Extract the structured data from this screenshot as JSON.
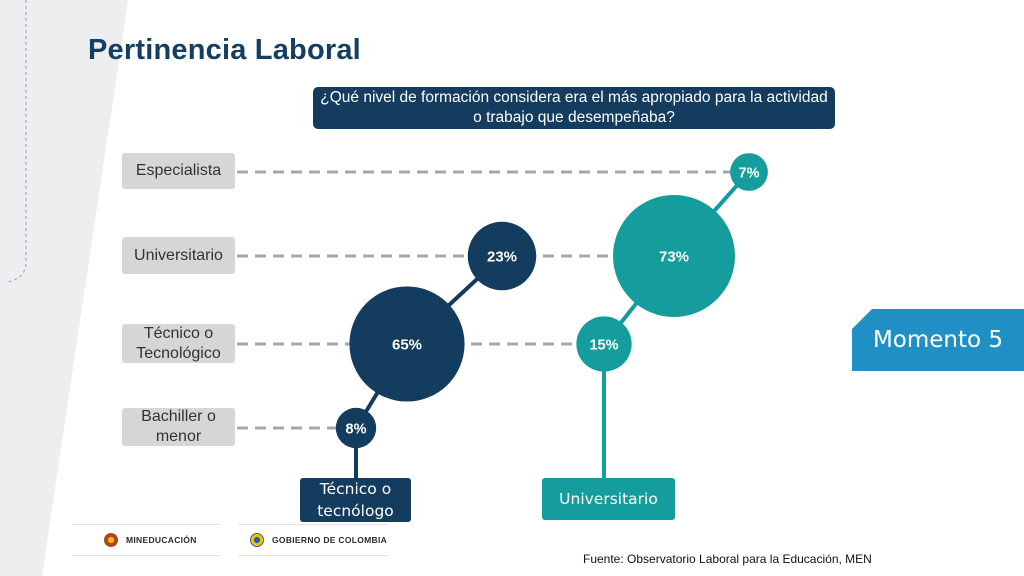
{
  "title": "Pertinencia Laboral",
  "question": "¿Qué nivel de formación considera era el más apropiado para la actividad o trabajo que desempeñaba?",
  "badge": "Momento 5",
  "source": "Fuente: Observatorio Laboral para la Educación, MEN",
  "logos": [
    "MINEDUCACIÓN",
    "GOBIERNO DE COLOMBIA"
  ],
  "colors": {
    "navy": "#133c5f",
    "teal": "#159d9d",
    "badge_blue": "#1f8fc4",
    "category_gray": "#d6d6d6",
    "dash_gray": "#a7a7a7"
  },
  "chart_data": {
    "type": "bubble",
    "categories": [
      "Especialista",
      "Universitario",
      "Técnico o Tecnológico",
      "Bachiller o menor"
    ],
    "category_labels": [
      "Especialista",
      "Universitario",
      "Técnico o\nTecnológico",
      "Bachiller o\nmenor"
    ],
    "series": [
      {
        "name": "Técnico o tecnólogo",
        "label": "Técnico o\ntecnólogo",
        "color": "#133c5f",
        "points": [
          {
            "category": "Bachiller o menor",
            "value": 8,
            "label": "8%"
          },
          {
            "category": "Técnico o Tecnológico",
            "value": 65,
            "label": "65%"
          },
          {
            "category": "Universitario",
            "value": 23,
            "label": "23%"
          }
        ]
      },
      {
        "name": "Universitario",
        "label": "Universitario",
        "color": "#159d9d",
        "points": [
          {
            "category": "Técnico o Tecnológico",
            "value": 15,
            "label": "15%"
          },
          {
            "category": "Universitario",
            "value": 73,
            "label": "73%"
          },
          {
            "category": "Especialista",
            "value": 7,
            "label": "7%"
          }
        ]
      }
    ]
  }
}
